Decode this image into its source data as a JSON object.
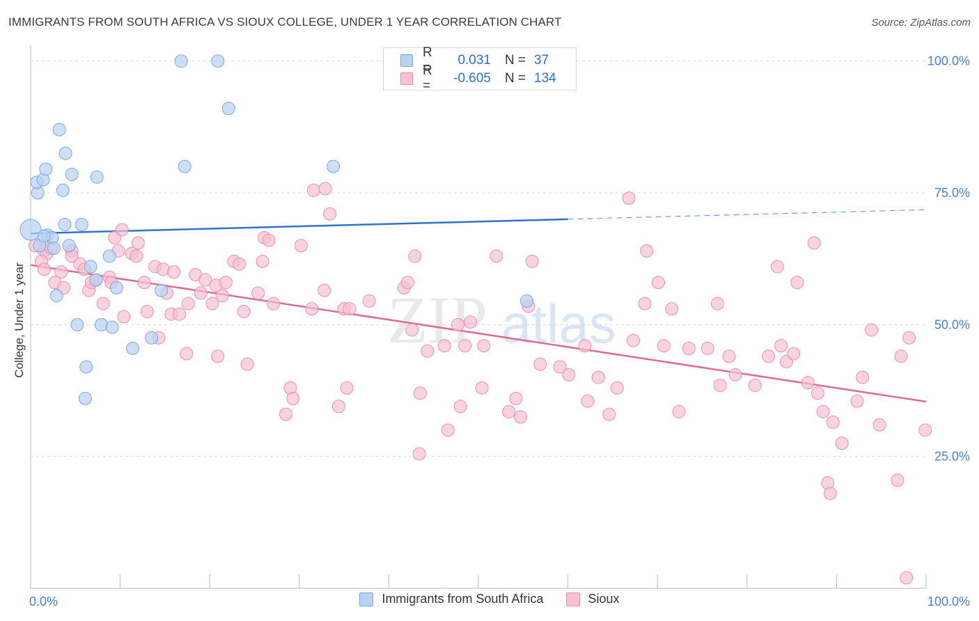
{
  "title": "IMMIGRANTS FROM SOUTH AFRICA VS SIOUX COLLEGE, UNDER 1 YEAR CORRELATION CHART",
  "source": "Source: ZipAtlas.com",
  "watermark": {
    "zip": "ZIP",
    "atlas": "atlas"
  },
  "colors": {
    "blue_fill": "#b7d2f3",
    "blue_stroke": "#7aa6dc",
    "blue_line": "#2f72cc",
    "pink_fill": "#f7c1d2",
    "pink_stroke": "#e98fae",
    "pink_line": "#e06a97",
    "tick_label": "#4a7fcc",
    "grid": "#dddddd"
  },
  "legend_top": {
    "rows": [
      {
        "r_label": "R =",
        "r_value": "0.031",
        "n_label": "N =",
        "n_value": "37"
      },
      {
        "r_label": "R =",
        "r_value": "-0.605",
        "n_label": "N =",
        "n_value": "134"
      }
    ]
  },
  "legend_bottom": [
    {
      "label": "Immigrants from South Africa"
    },
    {
      "label": "Sioux"
    }
  ],
  "chart_data": {
    "type": "scatter",
    "title": "IMMIGRANTS FROM SOUTH AFRICA VS SIOUX COLLEGE, UNDER 1 YEAR CORRELATION CHART",
    "xlabel": "",
    "ylabel": "College, Under 1 year",
    "xlim": [
      0,
      100
    ],
    "ylim": [
      0,
      103
    ],
    "x_tick_labels": [
      {
        "value": 0,
        "label": "0.0%"
      },
      {
        "value": 100,
        "label": "100.0%"
      }
    ],
    "y_ticks": [
      {
        "value": 25,
        "label": "25.0%"
      },
      {
        "value": 50,
        "label": "50.0%"
      },
      {
        "value": 75,
        "label": "75.0%"
      },
      {
        "value": 100,
        "label": "100.0%"
      }
    ],
    "x_minor_ticks": [
      10,
      20,
      30,
      40,
      50,
      60,
      70,
      80,
      90,
      100
    ],
    "grid": true,
    "legend_position": "top-center",
    "series": [
      {
        "name": "Immigrants from South Africa",
        "color": "#b7d2f3",
        "points": [
          [
            0.0,
            68.0
          ],
          [
            0.8,
            75.0
          ],
          [
            0.7,
            77.0
          ],
          [
            1.4,
            77.5
          ],
          [
            1.7,
            79.5
          ],
          [
            3.2,
            87.0
          ],
          [
            3.9,
            82.5
          ],
          [
            3.6,
            75.5
          ],
          [
            4.6,
            78.5
          ],
          [
            7.4,
            78.0
          ],
          [
            1.0,
            65.0
          ],
          [
            1.9,
            67.0
          ],
          [
            2.4,
            66.5
          ],
          [
            3.8,
            69.0
          ],
          [
            5.7,
            69.0
          ],
          [
            4.3,
            65.0
          ],
          [
            2.6,
            64.5
          ],
          [
            8.8,
            63.0
          ],
          [
            6.7,
            61.0
          ],
          [
            7.3,
            58.5
          ],
          [
            9.6,
            57.0
          ],
          [
            14.6,
            56.5
          ],
          [
            2.9,
            55.5
          ],
          [
            5.2,
            50.0
          ],
          [
            7.9,
            50.0
          ],
          [
            9.1,
            49.5
          ],
          [
            11.4,
            45.5
          ],
          [
            13.5,
            47.5
          ],
          [
            6.2,
            42.0
          ],
          [
            6.1,
            36.0
          ],
          [
            16.8,
            100.0
          ],
          [
            20.9,
            100.0
          ],
          [
            22.1,
            91.0
          ],
          [
            17.2,
            80.0
          ],
          [
            33.8,
            80.0
          ],
          [
            55.4,
            54.5
          ],
          [
            1.5,
            66.8
          ]
        ],
        "trend": {
          "solid": [
            [
              0,
              67.3
            ],
            [
              60,
              70.0
            ]
          ],
          "dashed": [
            [
              60,
              70.0
            ],
            [
              100,
              71.8
            ]
          ]
        }
      },
      {
        "name": "Sioux",
        "color": "#f7c1d2",
        "points": [
          [
            0.5,
            65.0
          ],
          [
            1.5,
            64.0
          ],
          [
            1.8,
            63.5
          ],
          [
            2.3,
            64.5
          ],
          [
            1.2,
            62.0
          ],
          [
            1.5,
            60.5
          ],
          [
            3.4,
            60.0
          ],
          [
            2.7,
            58.0
          ],
          [
            3.7,
            57.0
          ],
          [
            4.6,
            64.0
          ],
          [
            4.6,
            63.0
          ],
          [
            5.5,
            61.5
          ],
          [
            6.0,
            60.5
          ],
          [
            6.5,
            56.5
          ],
          [
            6.8,
            58.0
          ],
          [
            7.3,
            58.5
          ],
          [
            8.1,
            54.0
          ],
          [
            8.8,
            59.0
          ],
          [
            9.0,
            58.0
          ],
          [
            9.4,
            66.5
          ],
          [
            9.8,
            64.0
          ],
          [
            10.2,
            68.0
          ],
          [
            10.4,
            51.5
          ],
          [
            11.3,
            63.5
          ],
          [
            11.8,
            63.0
          ],
          [
            12.0,
            65.5
          ],
          [
            12.7,
            58.0
          ],
          [
            13.0,
            52.5
          ],
          [
            13.9,
            61.0
          ],
          [
            14.3,
            47.5
          ],
          [
            14.8,
            60.5
          ],
          [
            15.2,
            56.0
          ],
          [
            15.7,
            52.0
          ],
          [
            16.0,
            60.0
          ],
          [
            16.6,
            52.0
          ],
          [
            17.4,
            44.5
          ],
          [
            17.6,
            54.0
          ],
          [
            18.4,
            59.5
          ],
          [
            19.0,
            56.0
          ],
          [
            19.5,
            58.5
          ],
          [
            20.3,
            54.0
          ],
          [
            20.7,
            57.5
          ],
          [
            20.9,
            44.0
          ],
          [
            21.4,
            55.5
          ],
          [
            21.8,
            58.0
          ],
          [
            22.7,
            62.0
          ],
          [
            23.3,
            61.5
          ],
          [
            23.8,
            52.5
          ],
          [
            24.2,
            42.5
          ],
          [
            25.4,
            56.0
          ],
          [
            25.9,
            62.0
          ],
          [
            26.1,
            66.5
          ],
          [
            26.6,
            66.0
          ],
          [
            27.1,
            54.0
          ],
          [
            29.0,
            38.0
          ],
          [
            29.3,
            36.0
          ],
          [
            28.5,
            33.0
          ],
          [
            30.2,
            65.0
          ],
          [
            31.4,
            53.0
          ],
          [
            31.6,
            75.5
          ],
          [
            32.8,
            56.5
          ],
          [
            32.9,
            75.8
          ],
          [
            33.4,
            71.0
          ],
          [
            34.4,
            34.5
          ],
          [
            35.0,
            53.0
          ],
          [
            35.3,
            38.0
          ],
          [
            35.6,
            53.0
          ],
          [
            37.8,
            54.5
          ],
          [
            41.7,
            57.0
          ],
          [
            42.1,
            58.0
          ],
          [
            42.6,
            49.0
          ],
          [
            42.9,
            63.0
          ],
          [
            43.5,
            37.0
          ],
          [
            43.4,
            25.5
          ],
          [
            44.3,
            45.0
          ],
          [
            46.2,
            46.0
          ],
          [
            46.6,
            30.0
          ],
          [
            47.7,
            50.0
          ],
          [
            48.0,
            34.5
          ],
          [
            48.5,
            46.0
          ],
          [
            49.1,
            50.5
          ],
          [
            50.4,
            38.0
          ],
          [
            50.6,
            46.0
          ],
          [
            52.0,
            63.0
          ],
          [
            53.4,
            33.5
          ],
          [
            54.2,
            36.0
          ],
          [
            54.7,
            32.5
          ],
          [
            55.6,
            53.5
          ],
          [
            56.0,
            62.0
          ],
          [
            56.9,
            42.5
          ],
          [
            59.1,
            42.0
          ],
          [
            60.1,
            40.5
          ],
          [
            61.9,
            46.0
          ],
          [
            62.2,
            35.5
          ],
          [
            63.4,
            40.0
          ],
          [
            64.6,
            33.0
          ],
          [
            65.5,
            38.0
          ],
          [
            66.8,
            74.0
          ],
          [
            67.3,
            47.0
          ],
          [
            68.6,
            54.0
          ],
          [
            68.8,
            64.0
          ],
          [
            70.1,
            58.0
          ],
          [
            70.7,
            46.0
          ],
          [
            71.6,
            53.0
          ],
          [
            72.4,
            33.5
          ],
          [
            73.5,
            45.5
          ],
          [
            75.6,
            45.5
          ],
          [
            76.7,
            54.0
          ],
          [
            77.0,
            38.5
          ],
          [
            78.0,
            44.0
          ],
          [
            78.7,
            40.5
          ],
          [
            80.9,
            38.5
          ],
          [
            82.4,
            44.0
          ],
          [
            83.4,
            61.0
          ],
          [
            83.8,
            46.0
          ],
          [
            84.4,
            43.0
          ],
          [
            85.2,
            44.5
          ],
          [
            85.6,
            58.0
          ],
          [
            86.8,
            39.0
          ],
          [
            87.5,
            65.5
          ],
          [
            87.9,
            37.0
          ],
          [
            88.5,
            33.5
          ],
          [
            89.0,
            20.0
          ],
          [
            89.3,
            18.0
          ],
          [
            89.6,
            31.5
          ],
          [
            90.6,
            27.5
          ],
          [
            92.3,
            35.5
          ],
          [
            92.9,
            40.0
          ],
          [
            93.9,
            49.0
          ],
          [
            94.8,
            31.0
          ],
          [
            96.8,
            20.5
          ],
          [
            97.2,
            44.0
          ],
          [
            98.1,
            47.5
          ],
          [
            99.9,
            30.0
          ],
          [
            97.8,
            2.0
          ]
        ],
        "trend": {
          "solid": [
            [
              0,
              61.3
            ],
            [
              100,
              35.4
            ]
          ]
        }
      }
    ]
  }
}
